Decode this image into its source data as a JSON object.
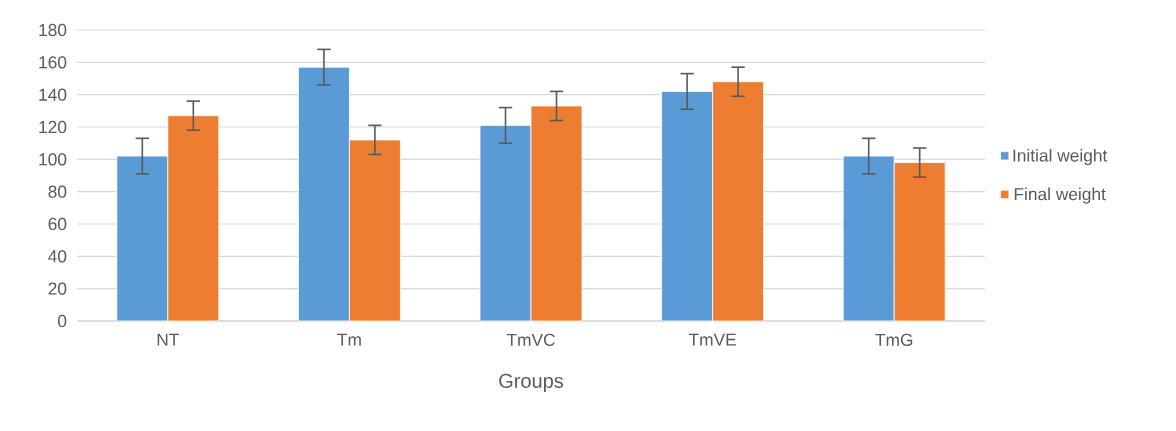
{
  "chart_data": {
    "type": "bar",
    "xlabel": "Groups",
    "categories": [
      "NT",
      "Tm",
      "TmVC",
      "TmVE",
      "TmG"
    ],
    "series": [
      {
        "name": "Initial weight",
        "color": "#5b9bd5",
        "values": [
          102,
          157,
          121,
          142,
          102
        ],
        "errors": [
          11,
          11,
          11,
          11,
          11
        ]
      },
      {
        "name": "Final weight",
        "color": "#ed7d31",
        "values": [
          127,
          112,
          133,
          148,
          98
        ],
        "errors": [
          9,
          9,
          9,
          9,
          9
        ]
      }
    ],
    "ylim": [
      0,
      180
    ],
    "yticks": [
      0,
      20,
      40,
      60,
      80,
      100,
      120,
      140,
      160,
      180
    ],
    "grid": "y",
    "legend": "right"
  }
}
